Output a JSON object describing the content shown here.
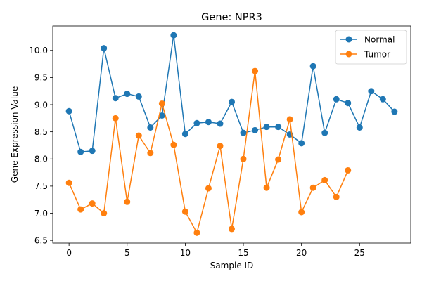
{
  "chart_data": {
    "type": "line",
    "title": "Gene: NPR3",
    "xlabel": "Sample ID",
    "ylabel": "Gene Expression Value",
    "xlim": [
      -1.4,
      29.4
    ],
    "ylim": [
      6.45,
      10.45
    ],
    "xticks": [
      0,
      5,
      10,
      15,
      20,
      25
    ],
    "yticks": [
      6.5,
      7.0,
      7.5,
      8.0,
      8.5,
      9.0,
      9.5,
      10.0
    ],
    "ytick_labels": [
      "6.5",
      "7.0",
      "7.5",
      "8.0",
      "8.5",
      "9.0",
      "9.5",
      "10.0"
    ],
    "grid": false,
    "legend": "top-right",
    "series": [
      {
        "name": "Normal",
        "color": "#1f77b4",
        "x": [
          0,
          1,
          2,
          3,
          4,
          5,
          6,
          7,
          8,
          9,
          10,
          11,
          12,
          13,
          14,
          15,
          16,
          17,
          18,
          19,
          20,
          21,
          22,
          23,
          24,
          25,
          26,
          27,
          28
        ],
        "y": [
          8.88,
          8.13,
          8.15,
          10.04,
          9.12,
          9.2,
          9.15,
          8.58,
          8.8,
          10.28,
          8.46,
          8.66,
          8.68,
          8.65,
          9.05,
          8.48,
          8.53,
          8.59,
          8.59,
          8.45,
          8.29,
          9.71,
          8.48,
          9.1,
          9.03,
          8.58,
          9.25,
          9.1,
          8.87
        ]
      },
      {
        "name": "Tumor",
        "color": "#ff7f0e",
        "x": [
          0,
          1,
          2,
          3,
          4,
          5,
          6,
          7,
          8,
          9,
          10,
          11,
          12,
          13,
          14,
          15,
          16,
          17,
          18,
          19,
          20,
          21,
          22,
          23,
          24
        ],
        "y": [
          7.56,
          7.07,
          7.18,
          7.0,
          8.75,
          7.21,
          8.43,
          8.11,
          9.02,
          8.26,
          7.03,
          6.64,
          7.46,
          8.24,
          6.71,
          8.0,
          9.62,
          7.47,
          7.99,
          8.73,
          7.02,
          7.47,
          7.61,
          7.3,
          7.79
        ]
      }
    ]
  }
}
